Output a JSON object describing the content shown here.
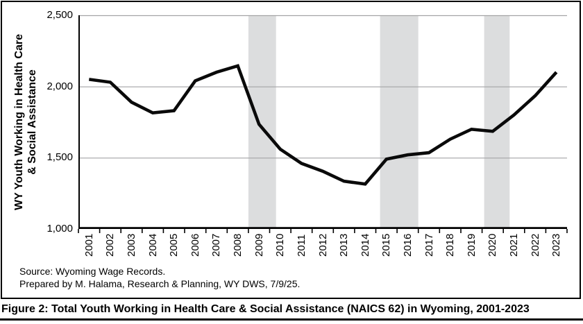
{
  "figure": {
    "caption": "Figure 2: Total Youth Working in Health Care & Social Assistance (NAICS 62) in Wyoming, 2001-2023",
    "source_line1": "Source: Wyoming Wage Records.",
    "source_line2": "Prepared by M. Halama, Research & Planning, WY DWS, 7/9/25."
  },
  "chart_data": {
    "type": "line",
    "title": "",
    "y_axis_title": "WY Youth Working in Health Care\n& Social Assistance",
    "series_name": "WY youth working in health care & social assistance",
    "categories": [
      2001,
      2002,
      2003,
      2004,
      2005,
      2006,
      2007,
      2008,
      2009,
      2010,
      2011,
      2012,
      2013,
      2014,
      2015,
      2016,
      2017,
      2018,
      2019,
      2020,
      2021,
      2022,
      2023
    ],
    "values": [
      2050,
      2030,
      1890,
      1815,
      1830,
      2040,
      2100,
      2145,
      1735,
      1560,
      1460,
      1405,
      1335,
      1315,
      1490,
      1520,
      1535,
      1630,
      1700,
      1685,
      1800,
      1935,
      2100
    ],
    "ylim": [
      1000,
      2500
    ],
    "yticks": [
      {
        "value": 2500,
        "label": "2,500"
      },
      {
        "value": 2000,
        "label": "2,000"
      },
      {
        "value": 1500,
        "label": "1,500"
      },
      {
        "value": 1000,
        "label": "1,000"
      }
    ],
    "grid": "horizontal",
    "legend": "none",
    "recession_bands": [
      {
        "from_year": 2008.5,
        "to_year": 2009.8
      },
      {
        "from_year": 2014.7,
        "to_year": 2016.5
      },
      {
        "from_year": 2019.6,
        "to_year": 2020.8
      }
    ],
    "colors": {
      "line": "#0a0a0a",
      "band": "#dcddde",
      "gridline": "#a3a3a5",
      "axis": "#000000"
    }
  }
}
